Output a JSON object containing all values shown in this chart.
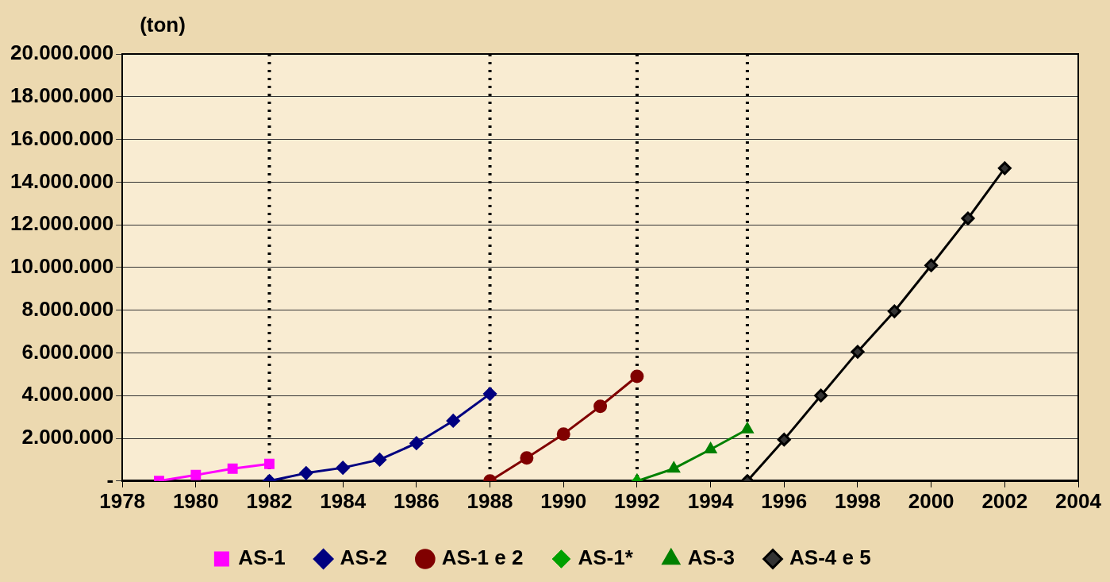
{
  "chart_data": {
    "type": "line",
    "ylabel": "(ton)",
    "xlim": [
      1978,
      2004
    ],
    "xticks": [
      1978,
      1980,
      1982,
      1984,
      1986,
      1988,
      1990,
      1992,
      1994,
      1996,
      1998,
      2000,
      2002,
      2004
    ],
    "ylim": [
      0,
      20000000
    ],
    "yticks": [
      {
        "value": 0,
        "label": "-"
      },
      {
        "value": 2000000,
        "label": "2.000.000"
      },
      {
        "value": 4000000,
        "label": "4.000.000"
      },
      {
        "value": 6000000,
        "label": "6.000.000"
      },
      {
        "value": 8000000,
        "label": "8.000.000"
      },
      {
        "value": 10000000,
        "label": "10.000.000"
      },
      {
        "value": 12000000,
        "label": "12.000.000"
      },
      {
        "value": 14000000,
        "label": "14.000.000"
      },
      {
        "value": 16000000,
        "label": "16.000.000"
      },
      {
        "value": 18000000,
        "label": "18.000.000"
      },
      {
        "value": 20000000,
        "label": "20.000.000"
      }
    ],
    "grid": "y",
    "legend": "bottom",
    "line_style": "solid",
    "series": [
      {
        "name": "AS-1",
        "color": "#ff00ff",
        "marker": "square",
        "x": [
          1979,
          1980,
          1981,
          1982
        ],
        "values": [
          0,
          280000,
          580000,
          800000
        ]
      },
      {
        "name": "AS-2",
        "color": "#000080",
        "marker": "diamond",
        "x": [
          1982,
          1983,
          1984,
          1985,
          1986,
          1987,
          1988
        ],
        "values": [
          0,
          370000,
          620000,
          1000000,
          1770000,
          2820000,
          4080000
        ]
      },
      {
        "name": "AS-1 e 2",
        "color": "#800000",
        "marker": "circle",
        "x": [
          1988,
          1989,
          1990,
          1991,
          1992
        ],
        "values": [
          0,
          1080000,
          2200000,
          3500000,
          4900000
        ]
      },
      {
        "name": "AS-1*",
        "color": "#00a000",
        "marker": "diamond",
        "x": [
          1992
        ],
        "values": [
          0
        ]
      },
      {
        "name": "AS-3",
        "color": "#008000",
        "marker": "triangle",
        "x": [
          1992,
          1993,
          1994,
          1995
        ],
        "values": [
          0,
          580000,
          1480000,
          2420000
        ]
      },
      {
        "name": "AS-4 e 5",
        "color": "#000000",
        "marker": "diamond",
        "x": [
          1995,
          1996,
          1997,
          1998,
          1999,
          2000,
          2001,
          2002
        ],
        "values": [
          0,
          1940000,
          4000000,
          6050000,
          7950000,
          10100000,
          12300000,
          14650000
        ]
      }
    ],
    "ref_lines": [
      {
        "axis": "x",
        "value": 1982,
        "color": "#000000",
        "line_style": "dotted"
      },
      {
        "axis": "x",
        "value": 1988,
        "color": "#000000",
        "line_style": "dotted"
      },
      {
        "axis": "x",
        "value": 1992,
        "color": "#000000",
        "line_style": "dotted"
      },
      {
        "axis": "x",
        "value": 1995,
        "color": "#000000",
        "line_style": "dotted"
      }
    ]
  }
}
